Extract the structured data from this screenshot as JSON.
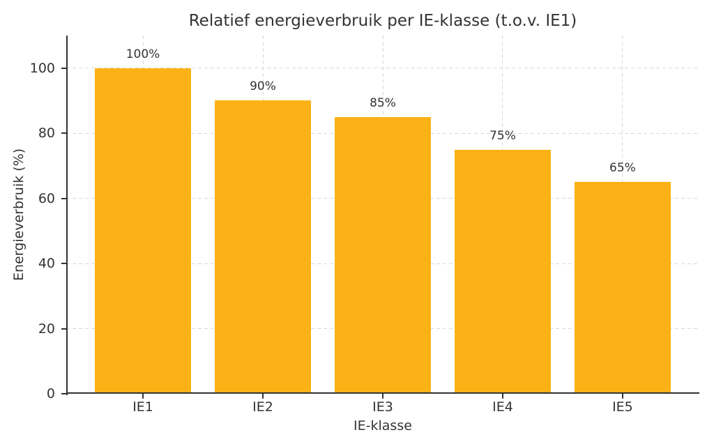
{
  "page": {
    "background_color": "#ffffff"
  },
  "chart_data": {
    "type": "bar",
    "title": "Relatief energieverbruik per IE-klasse (t.o.v. IE1)",
    "xlabel": "IE-klasse",
    "ylabel": "Energieverbruik (%)",
    "categories": [
      "IE1",
      "IE2",
      "IE3",
      "IE4",
      "IE5"
    ],
    "values": [
      100,
      90,
      85,
      75,
      65
    ],
    "bar_labels": [
      "100%",
      "90%",
      "85%",
      "75%",
      "65%"
    ],
    "yticks": [
      0,
      20,
      40,
      60,
      80,
      100
    ],
    "ylim": [
      0,
      110
    ],
    "bar_color": "#fcb216",
    "grid": {
      "visible": true,
      "axis": "both",
      "style": "dashed",
      "color": "#d8d8d8"
    },
    "text_color": "#333333",
    "spine_color": "#333333",
    "legend_position": "none"
  }
}
